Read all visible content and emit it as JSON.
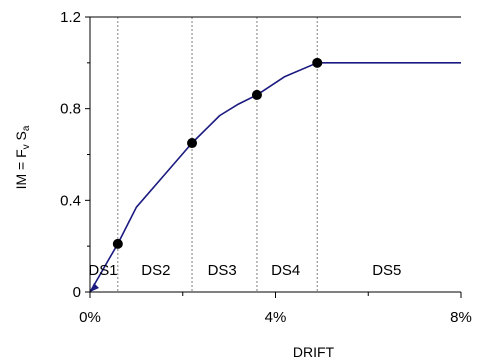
{
  "chart_data": {
    "type": "line",
    "xlabel": "DRIFT",
    "ylabel": "IM = F",
    "ylabel_sub": "v",
    "ylabel_tail": " S",
    "ylabel_sub2": "a",
    "xlim": [
      0,
      8
    ],
    "ylim": [
      0,
      1.2
    ],
    "x_ticks": [
      {
        "value": 0,
        "label": "0%"
      },
      {
        "value": 4,
        "label": "4%"
      },
      {
        "value": 8,
        "label": "8%"
      }
    ],
    "y_ticks": [
      {
        "value": 0,
        "label": "0"
      },
      {
        "value": 0.4,
        "label": "0.4"
      },
      {
        "value": 0.8,
        "label": "0.8"
      },
      {
        "value": 1.2,
        "label": "1.2"
      }
    ],
    "grid": false,
    "series": [
      {
        "color": "#1a1a80",
        "x": [
          0.0,
          0.2,
          0.4,
          0.6,
          0.8,
          1.0,
          1.6,
          2.2,
          2.8,
          3.2,
          3.6,
          4.2,
          4.9,
          5.5,
          6.5,
          7.4,
          8.0
        ],
        "y": [
          0.0,
          0.07,
          0.14,
          0.21,
          0.29,
          0.37,
          0.51,
          0.65,
          0.77,
          0.82,
          0.86,
          0.94,
          1.0,
          1.0,
          1.0,
          1.0,
          1.0
        ]
      }
    ],
    "markers": [
      {
        "x": 0.6,
        "y": 0.21
      },
      {
        "x": 2.2,
        "y": 0.65
      },
      {
        "x": 3.6,
        "y": 0.86
      },
      {
        "x": 4.9,
        "y": 1.0
      }
    ],
    "origin_marker": {
      "x": 0,
      "y": 0
    },
    "thresholds": [
      0.6,
      2.2,
      3.6,
      4.9
    ],
    "damage_states": [
      {
        "label": "DS1",
        "x": 0.28
      },
      {
        "label": "DS2",
        "x": 1.42
      },
      {
        "label": "DS3",
        "x": 2.85
      },
      {
        "label": "DS4",
        "x": 4.22
      },
      {
        "label": "DS5",
        "x": 6.4
      }
    ],
    "damage_state_label_y": 0.1,
    "colors": {
      "line": "#1a1a80",
      "marker": "#000000",
      "threshold": "#808080",
      "axis": "#000000"
    }
  }
}
